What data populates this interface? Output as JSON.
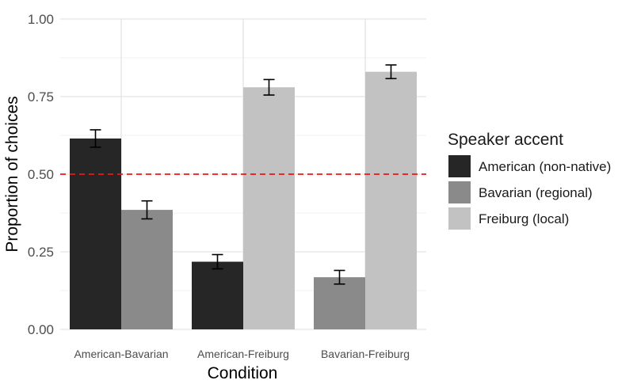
{
  "chart_data": {
    "type": "bar",
    "xlabel": "Condition",
    "ylabel": "Proportion of choices",
    "ylim": [
      0,
      1
    ],
    "y_ticks": [
      "0.00",
      "0.25",
      "0.50",
      "0.75",
      "1.00"
    ],
    "y_tick_values": [
      0,
      0.25,
      0.5,
      0.75,
      1.0
    ],
    "categories": [
      "American-Bavarian",
      "American-Freiburg",
      "Bavarian-Freiburg"
    ],
    "legend_title": "Speaker accent",
    "legend_position": "right",
    "grid": true,
    "reference_line": {
      "y": 0.5,
      "style": "dashed",
      "color": "#e41a1c"
    },
    "series": [
      {
        "name": "American (non-native)",
        "color": "#262626",
        "values": [
          0.615,
          0.218,
          null
        ],
        "errors": [
          [
            0.587,
            0.643
          ],
          [
            0.195,
            0.241
          ],
          null
        ]
      },
      {
        "name": "Bavarian (regional)",
        "color": "#8a8a8a",
        "values": [
          0.385,
          null,
          0.168
        ],
        "errors": [
          [
            0.356,
            0.414
          ],
          null,
          [
            0.146,
            0.19
          ]
        ]
      },
      {
        "name": "Freiburg (local)",
        "color": "#c2c2c2",
        "values": [
          null,
          0.78,
          0.83
        ],
        "errors": [
          null,
          [
            0.755,
            0.805
          ],
          [
            0.808,
            0.852
          ]
        ]
      }
    ]
  }
}
